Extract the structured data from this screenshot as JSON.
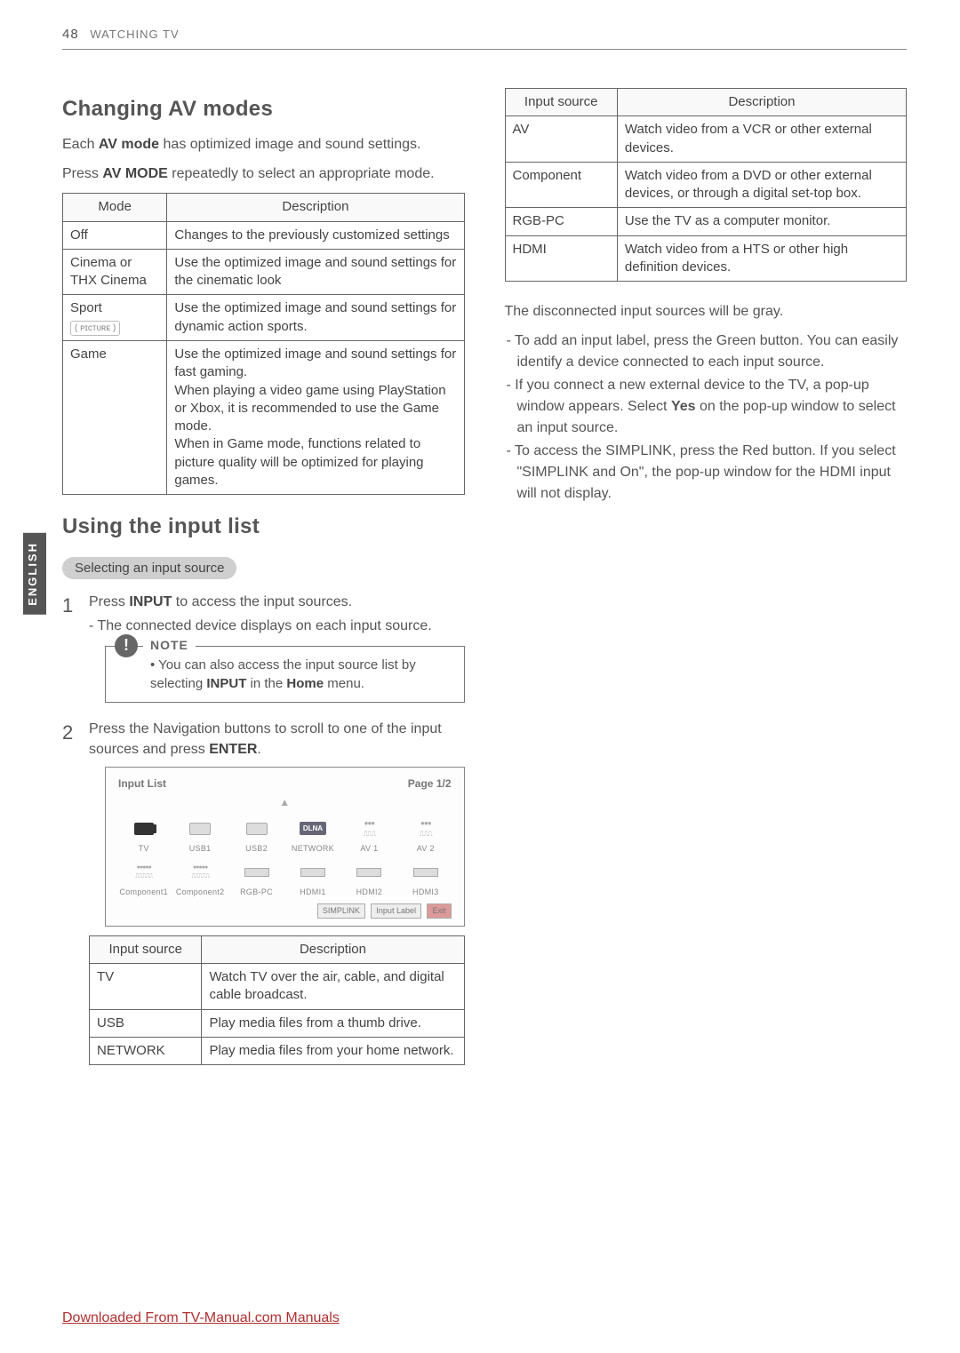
{
  "page": {
    "number": "48",
    "section": "WATCHING TV",
    "language_tab": "ENGLISH"
  },
  "left": {
    "heading_av": "Changing AV modes",
    "av_intro1a": "Each ",
    "av_intro1b": "AV mode",
    "av_intro1c": " has optimized image and sound settings.",
    "av_intro2a": "Press ",
    "av_intro2b": "AV MODE",
    "av_intro2c": " repeatedly to select an appropriate mode.",
    "av_table": {
      "headers": [
        "Mode",
        "Description"
      ],
      "rows": [
        {
          "mode": "Off",
          "desc": "Changes to the previously customized settings"
        },
        {
          "mode": "Cinema or THX Cinema",
          "desc": "Use the optimized image and sound settings for the cinematic look"
        },
        {
          "mode": "Sport",
          "mode_sub": "( ᴘɪᴄᴛᴜʀᴇ )",
          "desc": "Use the optimized image and sound settings for dynamic action sports."
        },
        {
          "mode": "Game",
          "desc": "Use the optimized image and sound settings for fast gaming.\nWhen playing a video game using PlayStation or Xbox, it is recommended to use the Game mode.\nWhen in Game mode, functions related to picture quality will be optimized for playing games."
        }
      ]
    },
    "heading_input": "Using the input list",
    "sub_select": "Selecting an input source",
    "step1a": "Press ",
    "step1b": "INPUT",
    "step1c": " to access the input sources.",
    "step1_dash": "- The connected device displays on each input source.",
    "note_label": "NOTE",
    "note_text_a": "• You can also access the input source list by selecting ",
    "note_text_b": "INPUT",
    "note_text_c": " in the ",
    "note_text_d": "Home",
    "note_text_e": " menu.",
    "step2a": "Press the Navigation buttons to scroll to one of the input sources and press ",
    "step2b": "ENTER",
    "step2c": ".",
    "input_panel": {
      "title": "Input List",
      "page_label": "Page 1/2",
      "items_row1": [
        "TV",
        "USB1",
        "USB2",
        "NETWORK",
        "AV 1",
        "AV 2"
      ],
      "items_row2": [
        "Component1",
        "Component2",
        "RGB-PC",
        "HDMI1",
        "HDMI2",
        "HDMI3"
      ],
      "footer": [
        "SIMPLINK",
        "Input Label",
        "Exit"
      ]
    },
    "src_table1": {
      "headers": [
        "Input source",
        "Description"
      ],
      "rows": [
        {
          "src": "TV",
          "desc": "Watch TV over the air, cable, and digital cable broadcast."
        },
        {
          "src": "USB",
          "desc": "Play media files from a thumb drive."
        },
        {
          "src": "NETWORK",
          "desc": "Play media files from your home network."
        }
      ]
    }
  },
  "right": {
    "src_table2": {
      "headers": [
        "Input source",
        "Description"
      ],
      "rows": [
        {
          "src": "AV",
          "desc": "Watch video from a VCR or other external devices."
        },
        {
          "src": "Component",
          "desc": "Watch video from a DVD or other external devices, or through a digital set-top box."
        },
        {
          "src": "RGB-PC",
          "desc": "Use the TV as a computer monitor."
        },
        {
          "src": "HDMI",
          "desc": "Watch video from a HTS or other high definition devices."
        }
      ]
    },
    "disc": "The disconnected input sources will be gray.",
    "bullets": [
      "- To add an input label, press the Green button. You can easily identify a device connected to each input source.",
      "- If you connect a new external device to the TV, a pop-up window appears. Select <b>Yes</b> on the pop-up window to select an input source.",
      "- To access the SIMPLINK, press the Red button. If you select \"SIMPLINK and On\", the pop-up window for the HDMI input will not display."
    ]
  },
  "footer_link": "Downloaded From TV-Manual.com Manuals"
}
